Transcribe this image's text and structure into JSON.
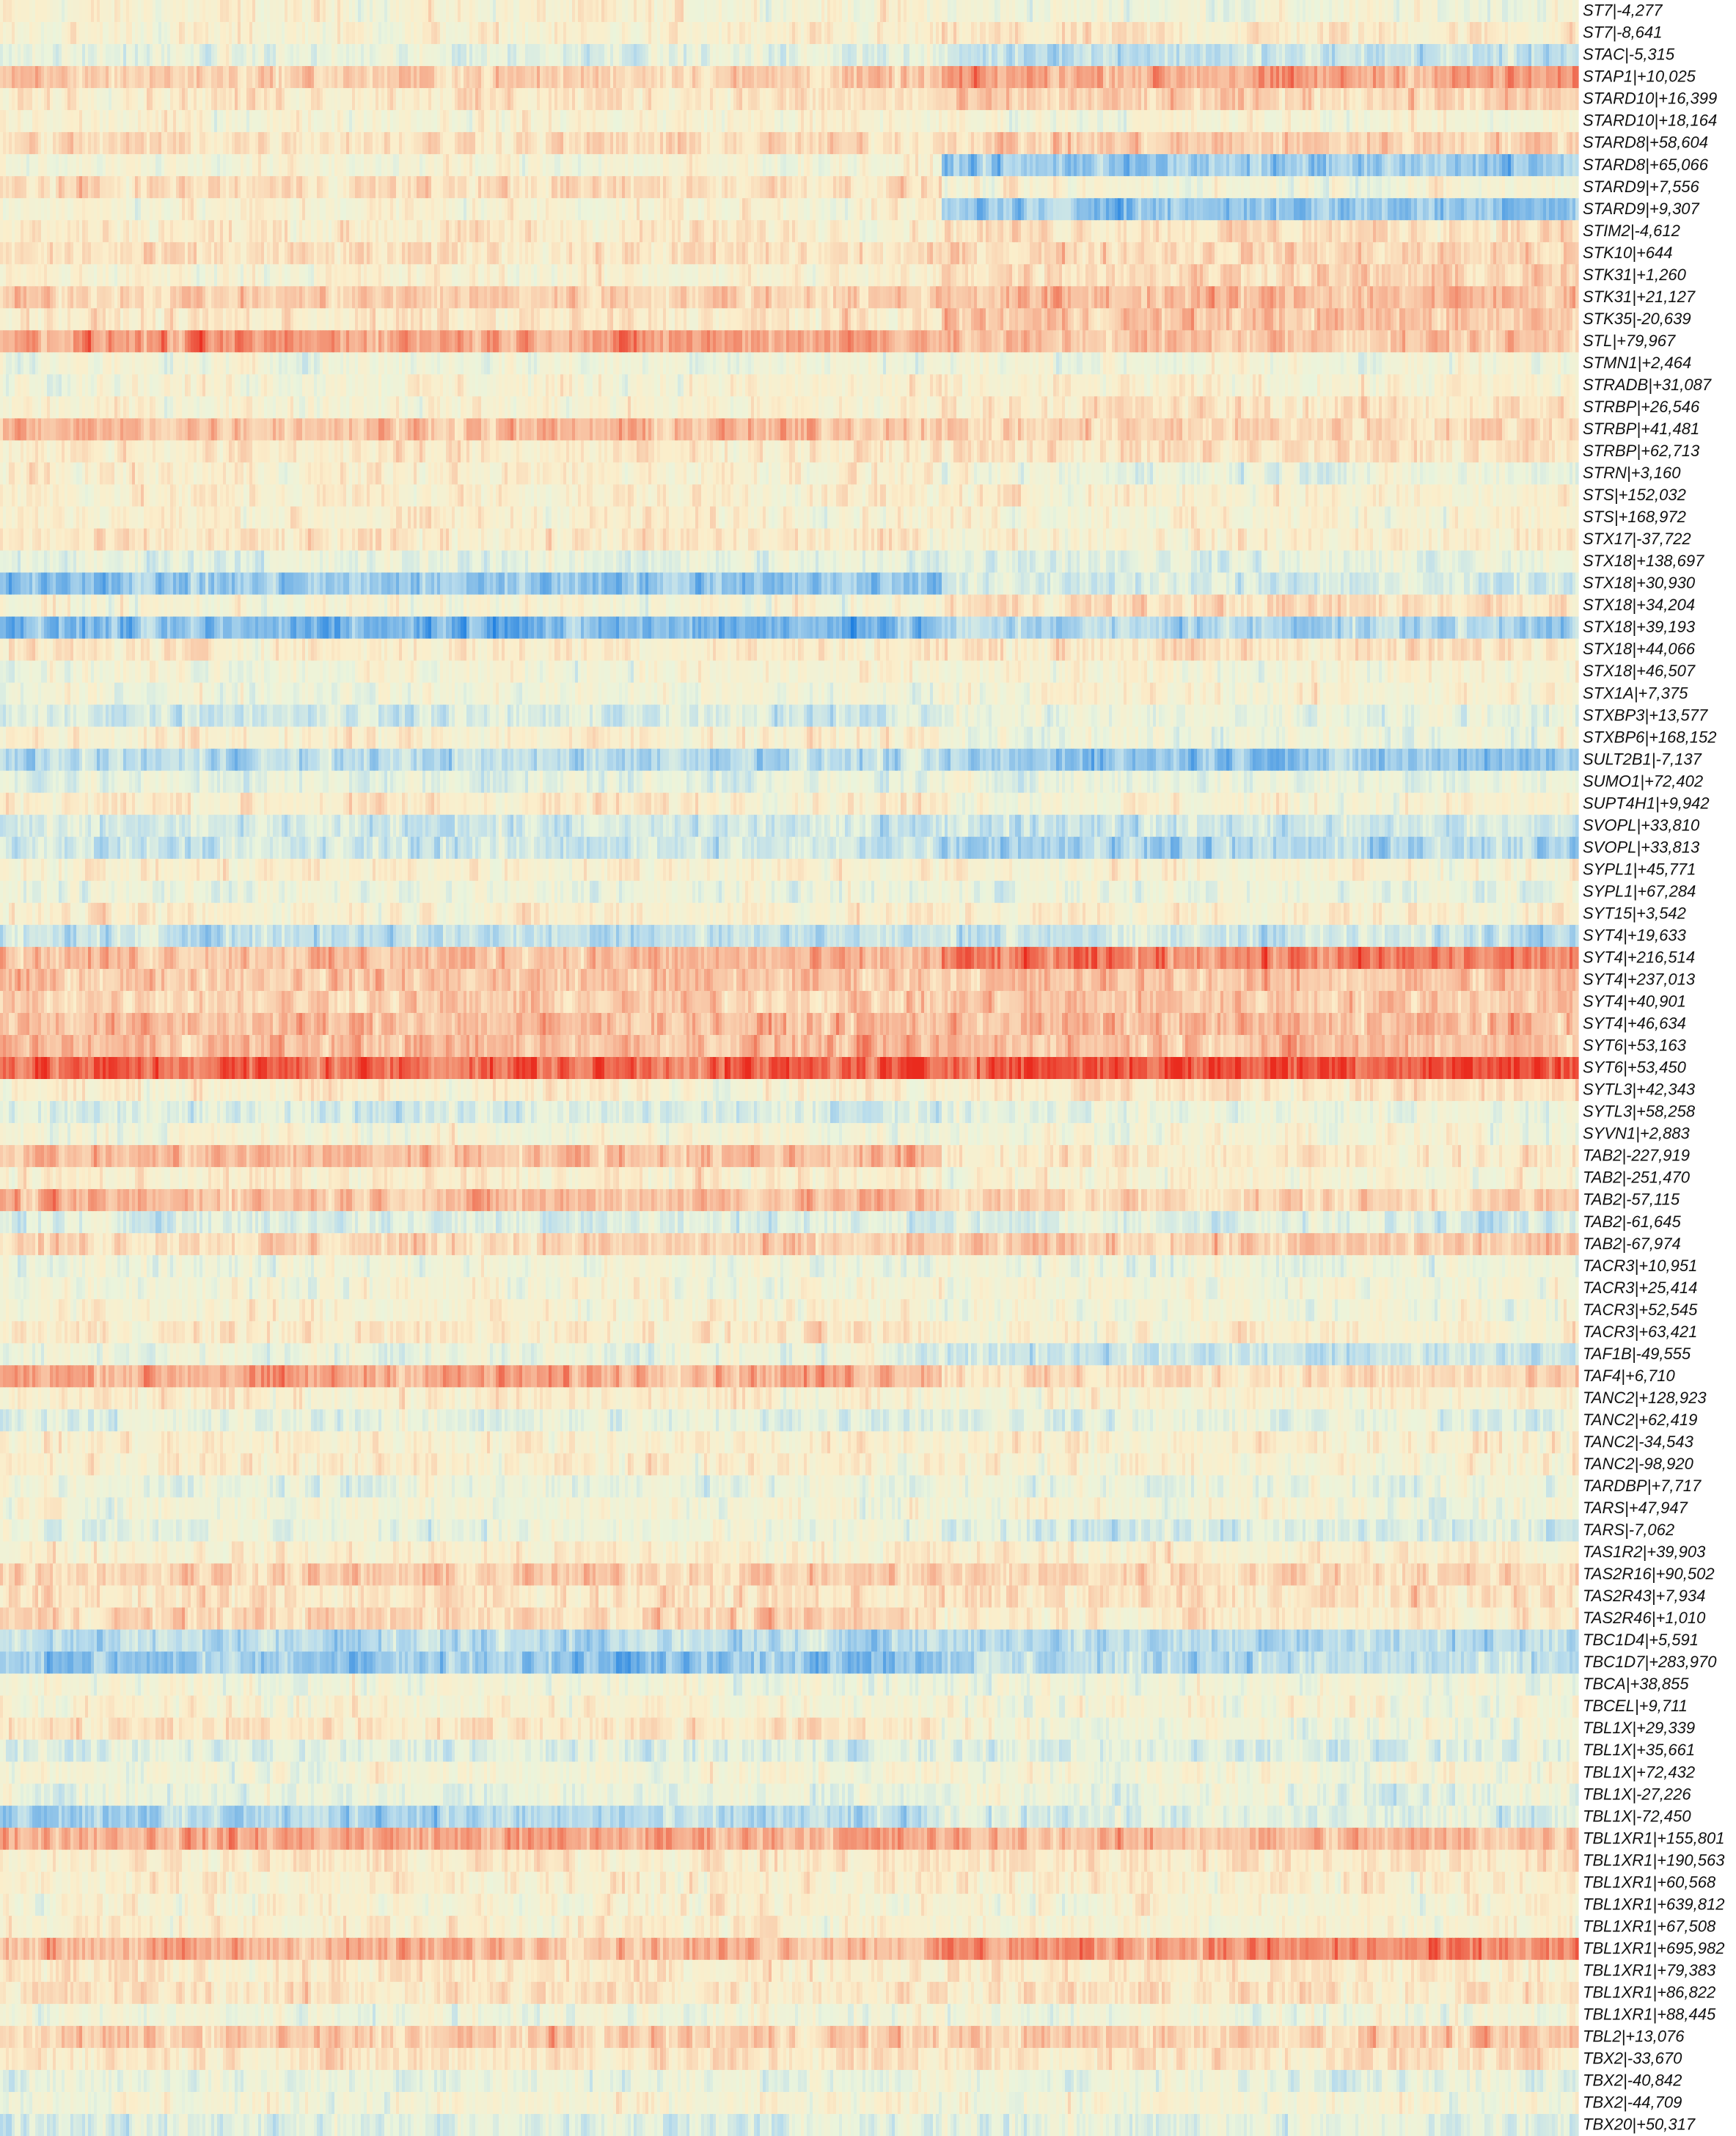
{
  "chart_data": {
    "type": "heatmap",
    "title": "",
    "xlabel": "",
    "ylabel": "",
    "legend": "none",
    "grid": false,
    "colormap": {
      "name": "RdYlBu_r",
      "stops": [
        "#1e7fe0",
        "#6fb0e6",
        "#b9dcec",
        "#eaf4dc",
        "#fbeecb",
        "#f8c3a3",
        "#f18466",
        "#ea2b1e"
      ]
    },
    "column_group_split_fraction": 0.597,
    "rows": [
      {
        "label": "ST7|-4,277",
        "mean": 0.02,
        "left": 0.05,
        "right": -0.05
      },
      {
        "label": "ST7|-8,641",
        "mean": 0.05,
        "left": 0.05,
        "right": 0.15
      },
      {
        "label": "STAC|-5,315",
        "mean": -0.1,
        "left": -0.15,
        "right": -0.35
      },
      {
        "label": "STAP1|+10,025",
        "mean": 0.35,
        "left": 0.35,
        "right": 0.55
      },
      {
        "label": "STARD10|+16,399",
        "mean": 0.2,
        "left": 0.2,
        "right": 0.3
      },
      {
        "label": "STARD10|+18,164",
        "mean": 0.05,
        "left": 0.05,
        "right": 0.0
      },
      {
        "label": "STARD8|+58,604",
        "mean": 0.25,
        "left": 0.25,
        "right": 0.35
      },
      {
        "label": "STARD8|+65,066",
        "mean": -0.1,
        "left": 0.0,
        "right": -0.55
      },
      {
        "label": "STARD9|+7,556",
        "mean": 0.2,
        "left": 0.25,
        "right": 0.0
      },
      {
        "label": "STARD9|+9,307",
        "mean": 0.0,
        "left": 0.05,
        "right": -0.55
      },
      {
        "label": "STIM2|-4,612",
        "mean": 0.2,
        "left": 0.15,
        "right": 0.25
      },
      {
        "label": "STK10|+644",
        "mean": 0.2,
        "left": 0.2,
        "right": 0.3
      },
      {
        "label": "STK31|+1,260",
        "mean": 0.1,
        "left": 0.05,
        "right": 0.3
      },
      {
        "label": "STK31|+21,127",
        "mean": 0.35,
        "left": 0.35,
        "right": 0.45
      },
      {
        "label": "STK35|-20,639",
        "mean": 0.15,
        "left": 0.15,
        "right": 0.4
      },
      {
        "label": "STL|+79,967",
        "mean": 0.55,
        "left": 0.6,
        "right": 0.4
      },
      {
        "label": "STMN1|+2,464",
        "mean": -0.05,
        "left": -0.05,
        "right": -0.05
      },
      {
        "label": "STRADB|+31,087",
        "mean": 0.05,
        "left": 0.05,
        "right": 0.05
      },
      {
        "label": "STRBP|+26,546",
        "mean": 0.1,
        "left": 0.05,
        "right": 0.2
      },
      {
        "label": "STRBP|+41,481",
        "mean": 0.4,
        "left": 0.45,
        "right": 0.3
      },
      {
        "label": "STRBP|+62,713",
        "mean": 0.15,
        "left": 0.15,
        "right": 0.2
      },
      {
        "label": "STRN|+3,160",
        "mean": 0.05,
        "left": 0.1,
        "right": -0.1
      },
      {
        "label": "STS|+152,032",
        "mean": 0.1,
        "left": 0.1,
        "right": 0.1
      },
      {
        "label": "STS|+168,972",
        "mean": 0.1,
        "left": 0.1,
        "right": 0.05
      },
      {
        "label": "STX17|-37,722",
        "mean": 0.15,
        "left": 0.15,
        "right": 0.1
      },
      {
        "label": "STX18|+138,697",
        "mean": -0.15,
        "left": -0.15,
        "right": -0.15
      },
      {
        "label": "STX18|+30,930",
        "mean": -0.5,
        "left": -0.55,
        "right": -0.25
      },
      {
        "label": "STX18|+34,204",
        "mean": 0.05,
        "left": 0.0,
        "right": 0.25
      },
      {
        "label": "STX18|+39,193",
        "mean": -0.6,
        "left": -0.65,
        "right": -0.45
      },
      {
        "label": "STX18|+44,066",
        "mean": 0.15,
        "left": 0.15,
        "right": 0.2
      },
      {
        "label": "STX18|+46,507",
        "mean": 0.0,
        "left": 0.0,
        "right": 0.0
      },
      {
        "label": "STX1A|+7,375",
        "mean": 0.0,
        "left": -0.05,
        "right": 0.05
      },
      {
        "label": "STXBP3|+13,577",
        "mean": -0.2,
        "left": -0.25,
        "right": -0.1
      },
      {
        "label": "STXBP6|+168,152",
        "mean": 0.05,
        "left": 0.1,
        "right": -0.1
      },
      {
        "label": "SULT2B1|-7,137",
        "mean": -0.45,
        "left": -0.4,
        "right": -0.55
      },
      {
        "label": "SUMO1|+72,402",
        "mean": -0.15,
        "left": -0.15,
        "right": -0.1
      },
      {
        "label": "SUPT4H1|+9,942",
        "mean": 0.1,
        "left": 0.15,
        "right": 0.05
      },
      {
        "label": "SVOPL|+33,810",
        "mean": -0.3,
        "left": -0.3,
        "right": -0.3
      },
      {
        "label": "SVOPL|+33,813",
        "mean": -0.35,
        "left": -0.3,
        "right": -0.45
      },
      {
        "label": "SYPL1|+45,771",
        "mean": 0.1,
        "left": 0.1,
        "right": 0.05
      },
      {
        "label": "SYPL1|+67,284",
        "mean": -0.1,
        "left": -0.1,
        "right": -0.1
      },
      {
        "label": "SYT15|+3,542",
        "mean": 0.1,
        "left": 0.1,
        "right": 0.1
      },
      {
        "label": "SYT4|+19,633",
        "mean": -0.35,
        "left": -0.35,
        "right": -0.3
      },
      {
        "label": "SYT4|+216,514",
        "mean": 0.55,
        "left": 0.45,
        "right": 0.7
      },
      {
        "label": "SYT4|+237,013",
        "mean": 0.4,
        "left": 0.4,
        "right": 0.4
      },
      {
        "label": "SYT4|+40,901",
        "mean": 0.35,
        "left": 0.35,
        "right": 0.4
      },
      {
        "label": "SYT4|+46,634",
        "mean": 0.45,
        "left": 0.45,
        "right": 0.45
      },
      {
        "label": "SYT6|+53,163",
        "mean": 0.45,
        "left": 0.45,
        "right": 0.45
      },
      {
        "label": "SYT6|+53,450",
        "mean": 0.85,
        "left": 0.8,
        "right": 0.9
      },
      {
        "label": "SYTL3|+42,343",
        "mean": 0.15,
        "left": 0.1,
        "right": 0.2
      },
      {
        "label": "SYTL3|+58,258",
        "mean": -0.2,
        "left": -0.25,
        "right": -0.1
      },
      {
        "label": "SYVN1|+2,883",
        "mean": 0.0,
        "left": 0.0,
        "right": 0.0
      },
      {
        "label": "TAB2|-227,919",
        "mean": 0.35,
        "left": 0.45,
        "right": 0.15
      },
      {
        "label": "TAB2|-251,470",
        "mean": 0.1,
        "left": 0.1,
        "right": 0.05
      },
      {
        "label": "TAB2|-57,115",
        "mean": 0.4,
        "left": 0.45,
        "right": 0.3
      },
      {
        "label": "TAB2|-61,645",
        "mean": -0.2,
        "left": -0.2,
        "right": -0.2
      },
      {
        "label": "TAB2|-67,974",
        "mean": 0.3,
        "left": 0.3,
        "right": 0.35
      },
      {
        "label": "TACR3|+10,951",
        "mean": -0.05,
        "left": -0.05,
        "right": -0.1
      },
      {
        "label": "TACR3|+25,414",
        "mean": 0.0,
        "left": 0.0,
        "right": 0.0
      },
      {
        "label": "TACR3|+52,545",
        "mean": 0.05,
        "left": 0.05,
        "right": -0.05
      },
      {
        "label": "TACR3|+63,421",
        "mean": 0.15,
        "left": 0.15,
        "right": 0.1
      },
      {
        "label": "TAF1B|-49,555",
        "mean": -0.15,
        "left": -0.1,
        "right": -0.3
      },
      {
        "label": "TAF4|+6,710",
        "mean": 0.45,
        "left": 0.55,
        "right": 0.25
      },
      {
        "label": "TANC2|+128,923",
        "mean": 0.1,
        "left": 0.1,
        "right": 0.05
      },
      {
        "label": "TANC2|+62,419",
        "mean": -0.15,
        "left": -0.15,
        "right": -0.15
      },
      {
        "label": "TANC2|-34,543",
        "mean": 0.1,
        "left": 0.1,
        "right": 0.1
      },
      {
        "label": "TANC2|-98,920",
        "mean": 0.1,
        "left": 0.1,
        "right": 0.05
      },
      {
        "label": "TARDBP|+7,717",
        "mean": -0.1,
        "left": -0.1,
        "right": -0.1
      },
      {
        "label": "TARS|+47,947",
        "mean": 0.0,
        "left": 0.0,
        "right": 0.0
      },
      {
        "label": "TARS|-7,062",
        "mean": -0.15,
        "left": -0.1,
        "right": -0.25
      },
      {
        "label": "TAS1R2|+39,903",
        "mean": 0.1,
        "left": 0.1,
        "right": 0.1
      },
      {
        "label": "TAS2R16|+90,502",
        "mean": 0.35,
        "left": 0.35,
        "right": 0.3
      },
      {
        "label": "TAS2R43|+7,934",
        "mean": 0.2,
        "left": 0.2,
        "right": 0.2
      },
      {
        "label": "TAS2R46|+1,010",
        "mean": 0.25,
        "left": 0.3,
        "right": 0.15
      },
      {
        "label": "TBC1D4|+5,591",
        "mean": -0.4,
        "left": -0.4,
        "right": -0.4
      },
      {
        "label": "TBC1D7|+283,970",
        "mean": -0.5,
        "left": -0.55,
        "right": -0.4
      },
      {
        "label": "TBCA|+38,855",
        "mean": -0.05,
        "left": -0.05,
        "right": -0.05
      },
      {
        "label": "TBCEL|+9,711",
        "mean": 0.05,
        "left": 0.05,
        "right": 0.0
      },
      {
        "label": "TBL1X|+29,339",
        "mean": 0.1,
        "left": 0.2,
        "right": -0.05
      },
      {
        "label": "TBL1X|+35,661",
        "mean": -0.2,
        "left": -0.2,
        "right": -0.2
      },
      {
        "label": "TBL1X|+72,432",
        "mean": 0.0,
        "left": 0.0,
        "right": 0.0
      },
      {
        "label": "TBL1X|-27,226",
        "mean": -0.1,
        "left": -0.1,
        "right": -0.1
      },
      {
        "label": "TBL1X|-72,450",
        "mean": -0.35,
        "left": -0.45,
        "right": -0.2
      },
      {
        "label": "TBL1XR1|+155,801",
        "mean": 0.5,
        "left": 0.55,
        "right": 0.45
      },
      {
        "label": "TBL1XR1|+190,563",
        "mean": 0.15,
        "left": 0.15,
        "right": 0.2
      },
      {
        "label": "TBL1XR1|+60,568",
        "mean": 0.1,
        "left": 0.1,
        "right": 0.1
      },
      {
        "label": "TBL1XR1|+639,812",
        "mean": 0.05,
        "left": 0.05,
        "right": 0.05
      },
      {
        "label": "TBL1XR1|+67,508",
        "mean": 0.1,
        "left": 0.1,
        "right": 0.05
      },
      {
        "label": "TBL1XR1|+695,982",
        "mean": 0.55,
        "left": 0.5,
        "right": 0.65
      },
      {
        "label": "TBL1XR1|+79,383",
        "mean": 0.15,
        "left": 0.15,
        "right": 0.15
      },
      {
        "label": "TBL1XR1|+86,822",
        "mean": 0.2,
        "left": 0.2,
        "right": 0.2
      },
      {
        "label": "TBL1XR1|+88,445",
        "mean": -0.05,
        "left": -0.05,
        "right": -0.05
      },
      {
        "label": "TBL2|+13,076",
        "mean": 0.35,
        "left": 0.35,
        "right": 0.35
      },
      {
        "label": "TBX2|-33,670",
        "mean": 0.2,
        "left": 0.2,
        "right": 0.2
      },
      {
        "label": "TBX2|-40,842",
        "mean": -0.1,
        "left": -0.1,
        "right": -0.1
      },
      {
        "label": "TBX2|-44,709",
        "mean": 0.0,
        "left": 0.0,
        "right": 0.0
      },
      {
        "label": "TBX20|+50,317",
        "mean": -0.2,
        "left": -0.2,
        "right": -0.15
      }
    ]
  }
}
